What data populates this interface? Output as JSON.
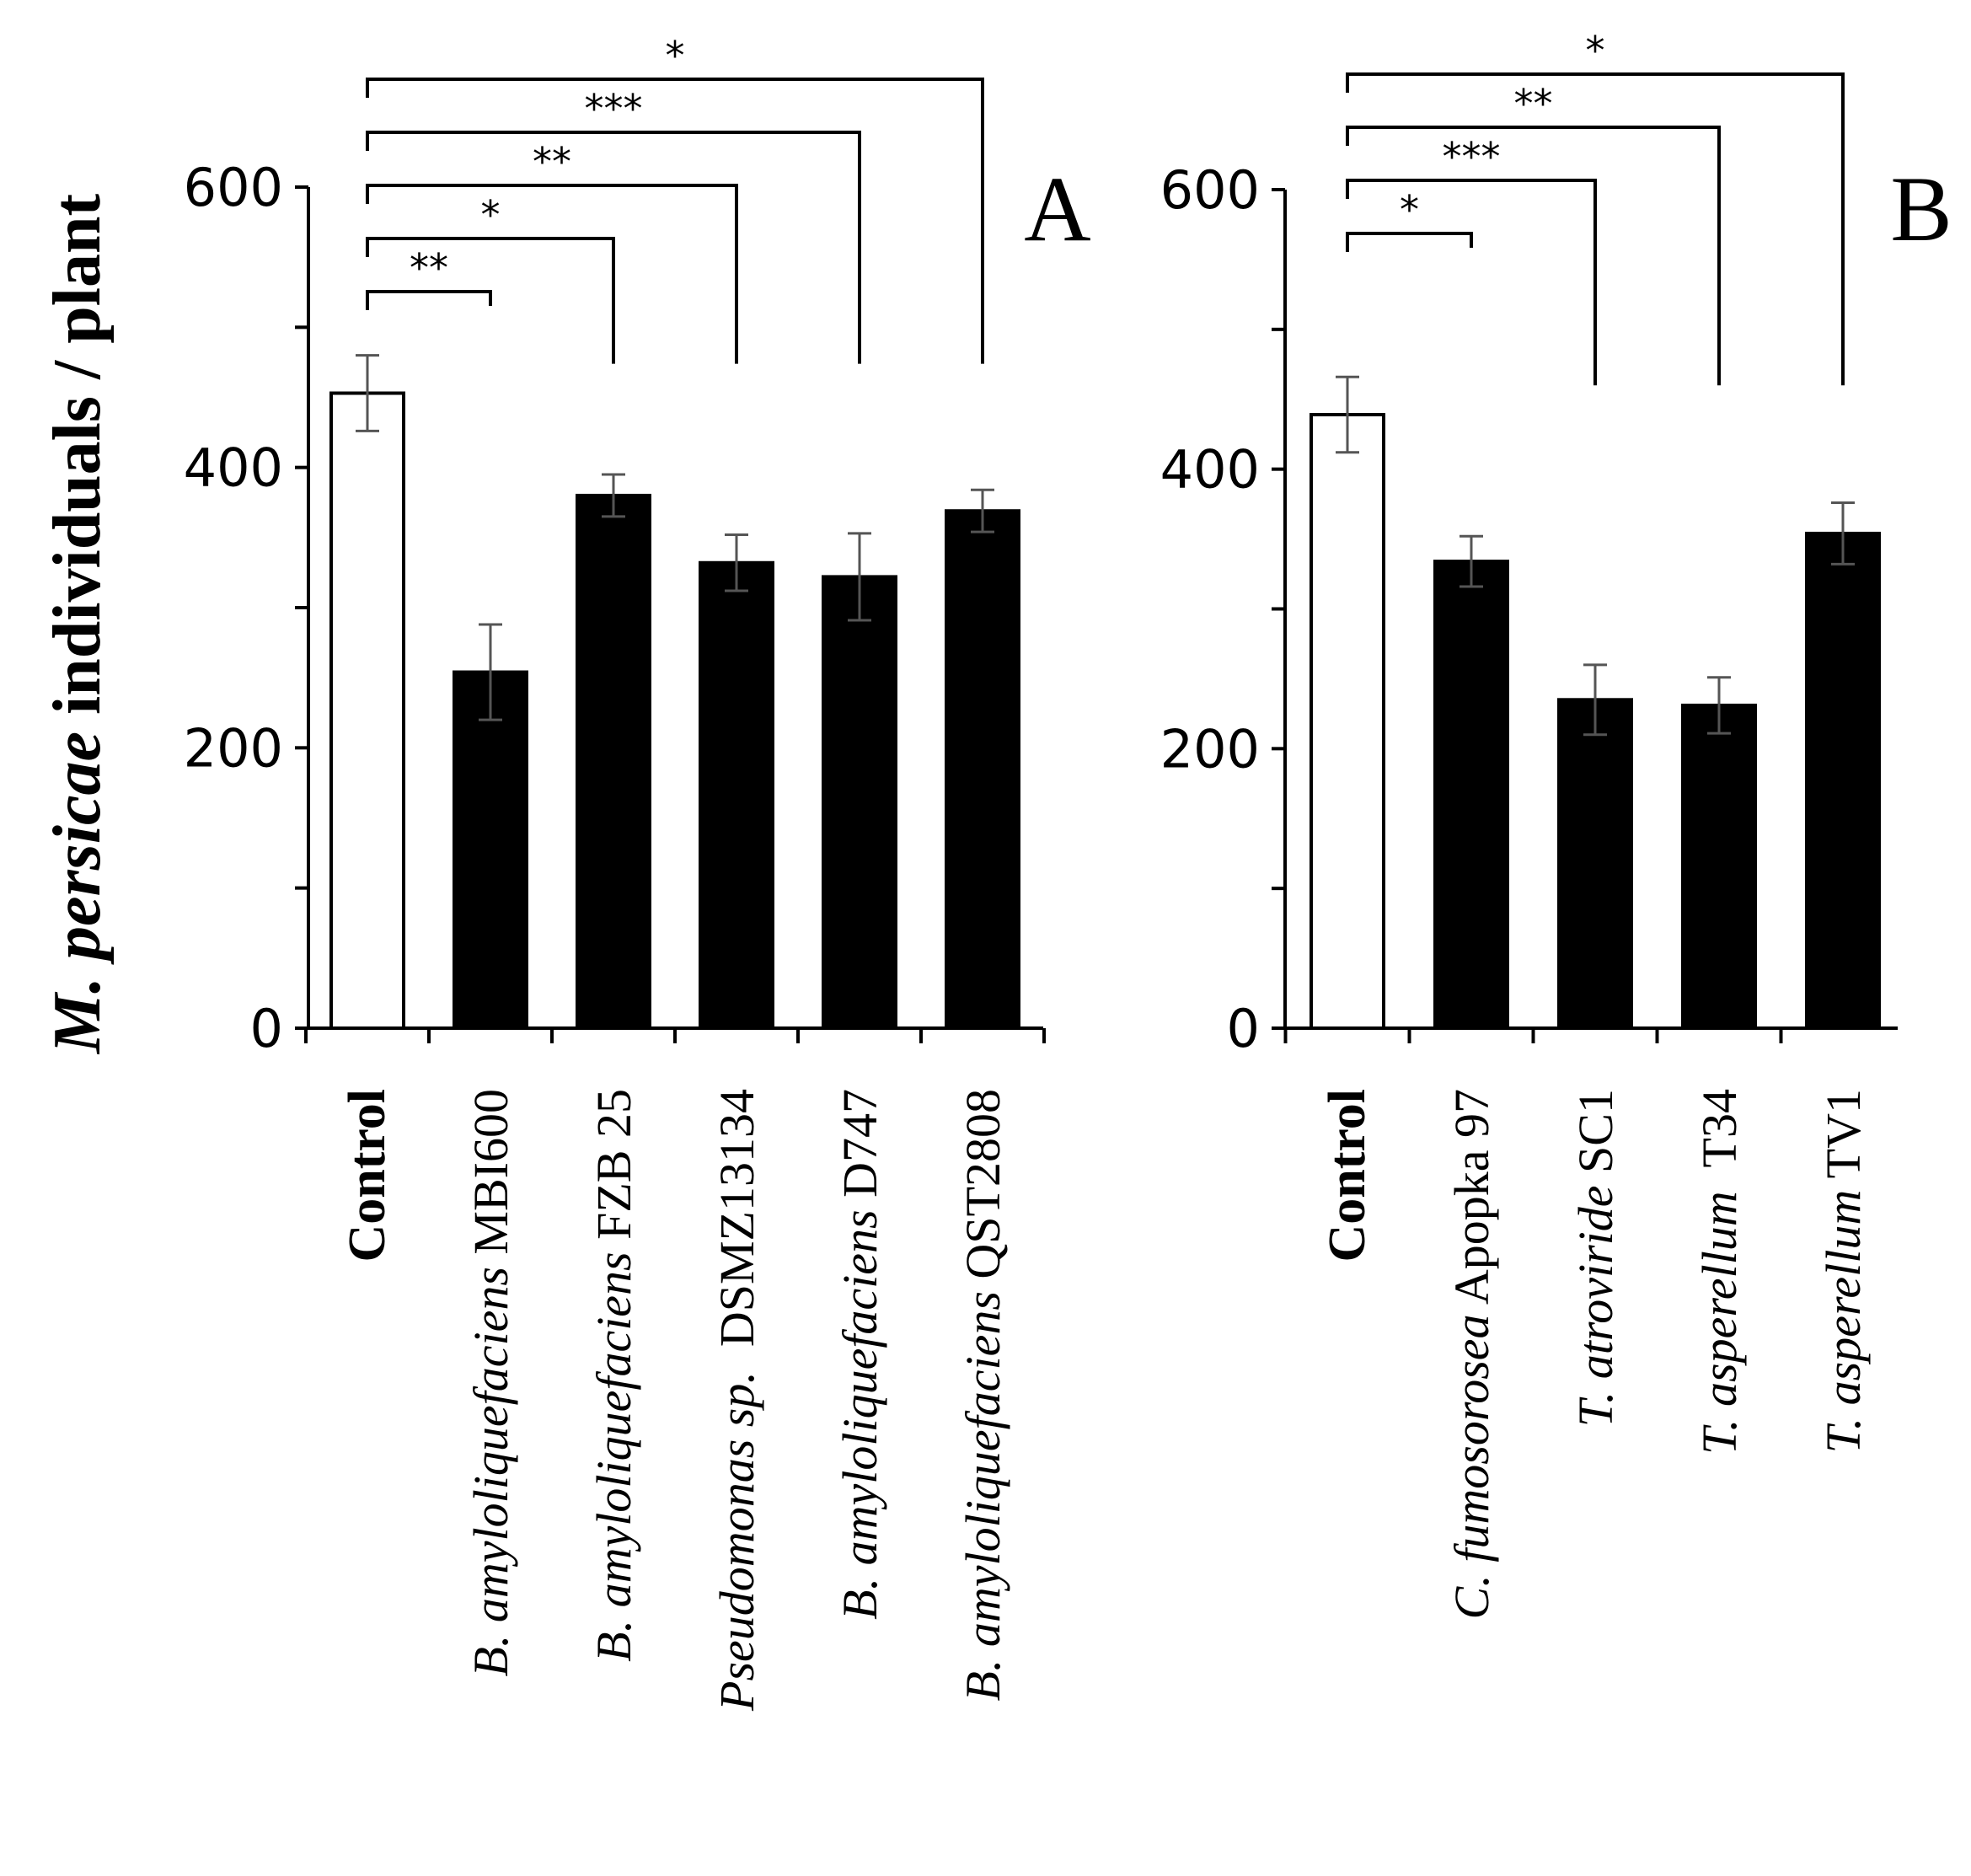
{
  "chart_data": [
    {
      "type": "bar",
      "panel_label": "A",
      "ylabel": {
        "species": "M. persicae",
        "text": " individuals / plant"
      },
      "ylim": [
        0,
        600
      ],
      "y_ticks": [
        "0",
        "200",
        "400",
        "600"
      ],
      "categories": [
        {
          "bold": "Control",
          "italic": "",
          "suffix": ""
        },
        {
          "bold": "",
          "italic": "B. amyloliquefaciens",
          "suffix": " MBI600"
        },
        {
          "bold": "",
          "italic": "B. amyloliquefaciens",
          "suffix": " FZB 25"
        },
        {
          "bold": "",
          "italic": "Pseudomonas sp.",
          "suffix": "  DSMZ13134"
        },
        {
          "bold": "",
          "italic": "B. amyloliquefaciens",
          "suffix": " D747"
        },
        {
          "bold": "",
          "italic": "B. amyloliquefaciens",
          "suffix": " QST2808"
        }
      ],
      "values": [
        453,
        254,
        380,
        332,
        322,
        369
      ],
      "errors": [
        27,
        34,
        15,
        20,
        31,
        15
      ],
      "bar_fill": [
        "#ffffff",
        "#000000",
        "#000000",
        "#000000",
        "#000000",
        "#000000"
      ],
      "significance": [
        {
          "target": 1,
          "label": "**"
        },
        {
          "target": 2,
          "label": "*"
        },
        {
          "target": 3,
          "label": "**"
        },
        {
          "target": 4,
          "label": "***"
        },
        {
          "target": 5,
          "label": "*"
        }
      ]
    },
    {
      "type": "bar",
      "panel_label": "B",
      "ylim": [
        0,
        600
      ],
      "y_ticks": [
        "0",
        "200",
        "400",
        "600"
      ],
      "categories": [
        {
          "bold": "Control",
          "italic": "",
          "suffix": ""
        },
        {
          "bold": "",
          "italic": "C. fumosorosea",
          "suffix": " Apopka 97"
        },
        {
          "bold": "",
          "italic": "T. atroviride",
          "suffix": " SC1"
        },
        {
          "bold": "",
          "italic": "T. asperellum",
          "suffix": "  T34"
        },
        {
          "bold": "",
          "italic": "T. asperellum",
          "suffix": " TV1"
        }
      ],
      "values": [
        439,
        334,
        235,
        231,
        354
      ],
      "errors": [
        27,
        18,
        25,
        20,
        22
      ],
      "bar_fill": [
        "#ffffff",
        "#000000",
        "#000000",
        "#000000",
        "#000000"
      ],
      "significance": [
        {
          "target": 1,
          "label": "*"
        },
        {
          "target": 2,
          "label": "***"
        },
        {
          "target": 3,
          "label": "**"
        },
        {
          "target": 4,
          "label": "*"
        }
      ]
    }
  ]
}
